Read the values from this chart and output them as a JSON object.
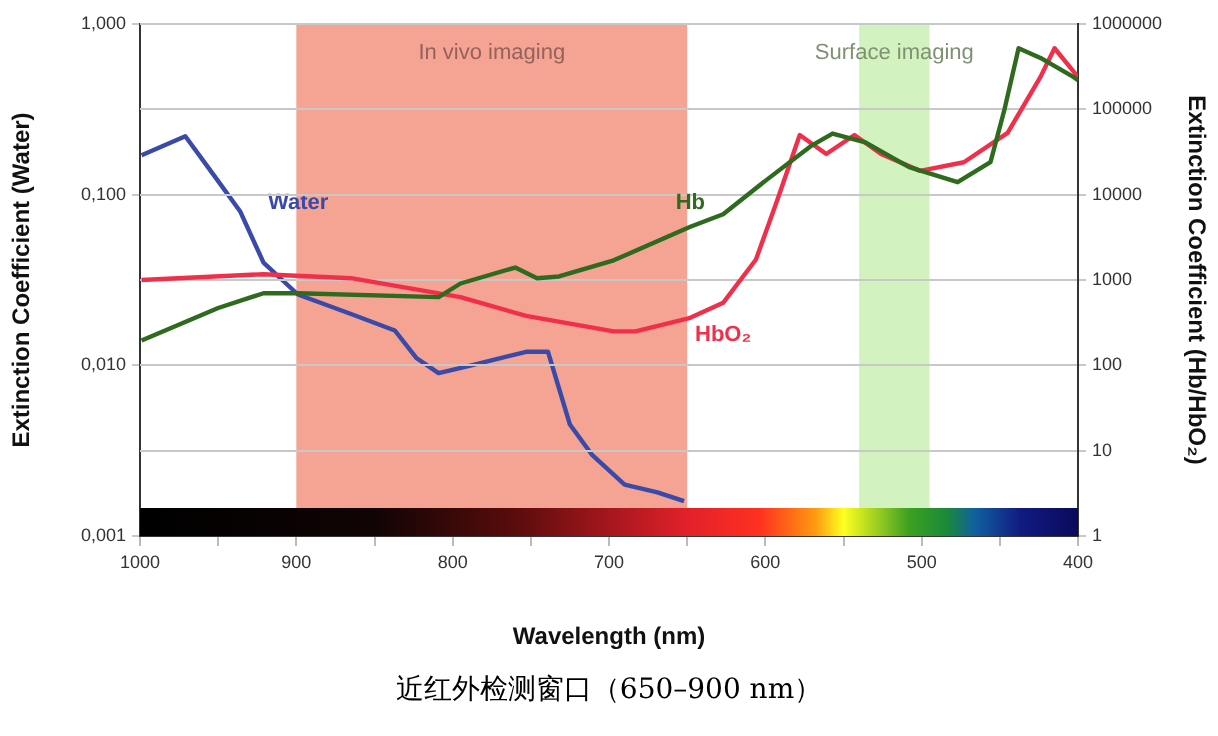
{
  "chart_data": [
    {
      "type": "line",
      "xlabel": "Wavelength (nm)",
      "ylabel": "Extinction Coefficient (Water)",
      "annotations": [
        "近红外检测窗口（650–900 nm）"
      ],
      "xlim": [
        1000,
        400
      ],
      "xticks": [
        1000,
        {
          "value": 950,
          "label": null
        },
        900,
        {
          "value": 850,
          "label": null
        },
        800,
        {
          "value": 750,
          "label": null
        },
        700,
        {
          "value": 650,
          "label": null
        },
        600,
        {
          "value": 550,
          "label": null
        },
        500,
        {
          "value": 450,
          "label": null
        },
        400
      ],
      "ylim": [
        0.001,
        1
      ],
      "yticks": [
        {
          "value": 0.001,
          "label": "0,001"
        },
        {
          "value": 0.01,
          "label": "0,010"
        },
        {
          "value": 0.1,
          "label": "0,100"
        },
        {
          "value": 1,
          "label": "1,000"
        }
      ],
      "log": "y",
      "legend": false,
      "marker": "none",
      "line_style": "solid",
      "bands": [
        {
          "axis": "x",
          "from": 900,
          "to": 650,
          "label": "In vivo imaging",
          "color": "#f5a494"
        },
        {
          "axis": "x",
          "from": 540,
          "to": 495,
          "label": "Surface imaging",
          "color": "#d2f2bf"
        }
      ],
      "series": [
        {
          "name": "Water",
          "color": "#3a4aa8",
          "x": [
            999,
            971,
            950,
            936,
            921,
            899,
            865,
            837,
            823,
            809,
            788,
            753,
            739,
            725,
            711,
            690,
            669,
            652
          ],
          "values": [
            0.17,
            0.22,
            0.12,
            0.08,
            0.04,
            0.026,
            0.02,
            0.016,
            0.011,
            0.009,
            0.01,
            0.012,
            0.012,
            0.0045,
            0.003,
            0.002,
            0.0018,
            0.0016
          ]
        }
      ]
    },
    {
      "type": "line",
      "ylabel": "Extinction Coefficient (Hb/HbO₂)",
      "xlim": [
        1000,
        400
      ],
      "ylim": [
        1,
        1000000
      ],
      "yticks": [
        1,
        10,
        100,
        1000,
        10000,
        100000,
        1000000
      ],
      "log": "y",
      "grid": "y",
      "legend": false,
      "marker": "none",
      "line_style": "solid",
      "tick_labels": "y",
      "series": [
        {
          "name": "Hb",
          "color": "#2e6b1e",
          "x": [
            999,
            950,
            921,
            899,
            809,
            795,
            760,
            746,
            732,
            697,
            648,
            627,
            599,
            571,
            557,
            536,
            508,
            477,
            456,
            447,
            438,
            424,
            403,
            400
          ],
          "values": [
            195,
            470,
            700,
            700,
            630,
            910,
            1400,
            1050,
            1100,
            1700,
            4200,
            5900,
            15000,
            37000,
            52000,
            41000,
            21000,
            14000,
            24000,
            100000,
            520000,
            400000,
            240000,
            220000
          ]
        },
        {
          "name": "HbO₂",
          "color": "#f0304a",
          "x": [
            999,
            921,
            865,
            795,
            753,
            697,
            683,
            648,
            627,
            606,
            592,
            578,
            561,
            543,
            526,
            501,
            473,
            445,
            424,
            415,
            400
          ],
          "values": [
            1000,
            1170,
            1050,
            630,
            380,
            250,
            250,
            360,
            540,
            1740,
            9000,
            50000,
            30000,
            50000,
            30000,
            19000,
            24000,
            53000,
            240000,
            520000,
            240000
          ]
        }
      ]
    }
  ]
}
